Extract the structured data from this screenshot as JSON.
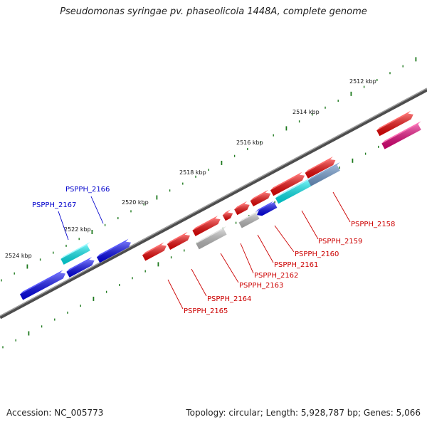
{
  "title": "Pseudomonas syringae pv. phaseolicola 1448A, complete genome",
  "footer": {
    "accession": "Accession: NC_005773",
    "summary": "Topology: circular; Length: 5,928,787 bp; Genes: 5,066"
  },
  "colors": {
    "backbone": "#7a7a7a",
    "tick": "#1e7a1e",
    "label_red": "#cc0000",
    "label_blue": "#0000cc"
  },
  "scale": {
    "labels": [
      "2512 kbp",
      "2514 kbp",
      "2516 kbp",
      "2518 kbp",
      "2520 kbp",
      "2522 kbp",
      "2524 kbp"
    ]
  },
  "genes_upper": [
    {
      "label": "PSPPH_2166",
      "color": "blue"
    },
    {
      "label": "PSPPH_2167",
      "color": "blue"
    }
  ],
  "genes_lower": [
    {
      "label": "PSPPH_2158",
      "color": "red"
    },
    {
      "label": "PSPPH_2159",
      "color": "red"
    },
    {
      "label": "PSPPH_2160",
      "color": "red"
    },
    {
      "label": "PSPPH_2161",
      "color": "red"
    },
    {
      "label": "PSPPH_2162",
      "color": "red"
    },
    {
      "label": "PSPPH_2163",
      "color": "red"
    },
    {
      "label": "PSPPH_2164",
      "color": "red"
    },
    {
      "label": "PSPPH_2165",
      "color": "red"
    }
  ]
}
